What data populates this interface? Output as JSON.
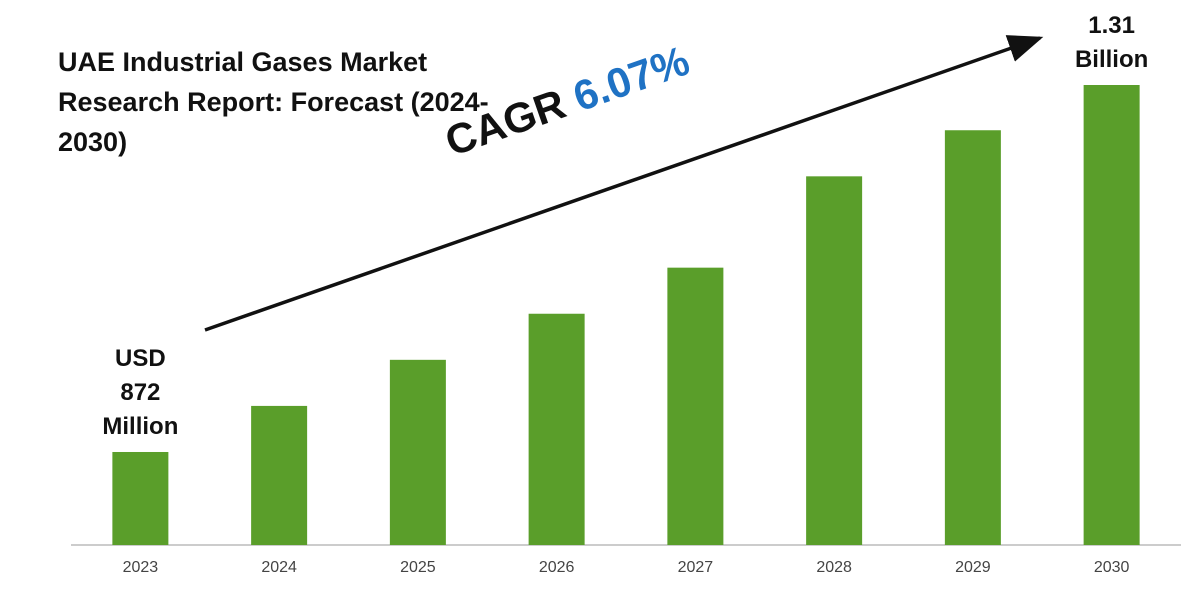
{
  "chart_data": {
    "type": "bar",
    "title": "UAE Industrial Gases Market Research Report: Forecast (2024-2030)",
    "annotations": [
      {
        "text": "CAGR",
        "color": "#111111"
      },
      {
        "text": "6.07%",
        "color": "#1f72c4"
      }
    ],
    "categories": [
      "2023",
      "2024",
      "2025",
      "2026",
      "2027",
      "2028",
      "2029",
      "2030"
    ],
    "values": [
      872,
      927,
      982,
      1037,
      1092,
      1201,
      1256,
      1310
    ],
    "value_labels": [
      "USD 872 Million",
      null,
      null,
      null,
      null,
      null,
      null,
      "USD 1.31 Billion"
    ],
    "color": "#5a9e2a",
    "ylim": [
      761,
      1310
    ]
  }
}
